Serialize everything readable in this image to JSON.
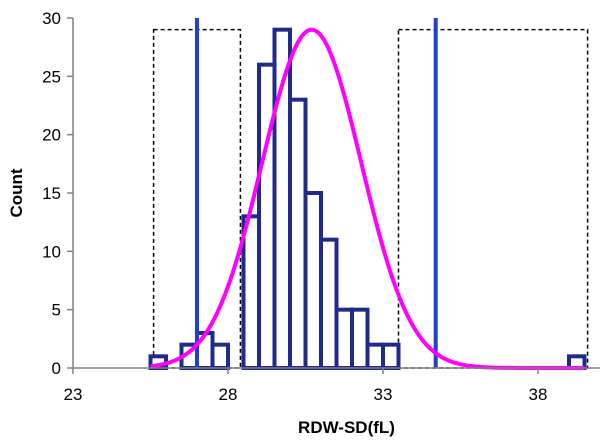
{
  "chart_data": {
    "type": "bar",
    "title": "",
    "xlabel": "RDW-SD(fL)",
    "ylabel": "Count",
    "xlim": [
      23,
      40
    ],
    "ylim": [
      0,
      30
    ],
    "x_ticks": [
      23,
      28,
      33,
      38
    ],
    "y_ticks": [
      0,
      5,
      10,
      15,
      20,
      25,
      30
    ],
    "grid": false,
    "legend": "none",
    "bin_width": 0.5,
    "bins": [
      {
        "x": 25.5,
        "count": 1
      },
      {
        "x": 26.0,
        "count": 0
      },
      {
        "x": 26.5,
        "count": 2
      },
      {
        "x": 27.0,
        "count": 3
      },
      {
        "x": 27.5,
        "count": 2
      },
      {
        "x": 28.0,
        "count": 0
      },
      {
        "x": 28.5,
        "count": 13
      },
      {
        "x": 29.0,
        "count": 26
      },
      {
        "x": 29.5,
        "count": 29
      },
      {
        "x": 30.0,
        "count": 23
      },
      {
        "x": 30.5,
        "count": 15
      },
      {
        "x": 31.0,
        "count": 11
      },
      {
        "x": 31.5,
        "count": 5
      },
      {
        "x": 32.0,
        "count": 5
      },
      {
        "x": 32.5,
        "count": 2
      },
      {
        "x": 33.0,
        "count": 2
      },
      {
        "x": 39.0,
        "count": 1
      }
    ],
    "normal_curve": {
      "mean": 30.7,
      "sd": 1.6,
      "peak": 29,
      "x_range": [
        25.5,
        39.5
      ]
    },
    "reference_lines": [
      27.0,
      34.7
    ],
    "tail_boxes": [
      {
        "x_start": 25.6,
        "x_end": 28.4,
        "y_top": 29
      },
      {
        "x_start": 33.5,
        "x_end": 39.6,
        "y_top": 29
      }
    ],
    "colors": {
      "bars": "#1f2a8c",
      "curve": "#ff00ff",
      "reference_lines": "#1f3fd4",
      "tail_boxes": "#000000",
      "axes": "#808080"
    }
  }
}
